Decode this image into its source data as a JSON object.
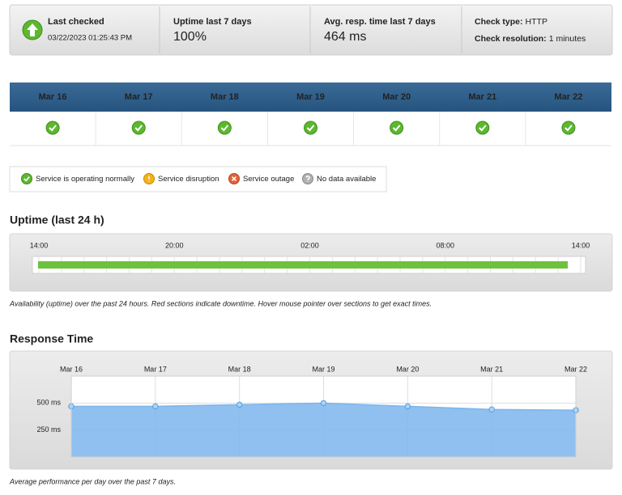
{
  "status": {
    "last_checked": {
      "label": "Last checked",
      "value": "03/22/2023 01:25:43 PM"
    },
    "uptime": {
      "label": "Uptime last 7 days",
      "value": "100%"
    },
    "avg_resp": {
      "label": "Avg. resp. time last 7 days",
      "value": "464 ms"
    },
    "check_type": {
      "label": "Check type:",
      "value": "HTTP"
    },
    "check_resolution": {
      "label": "Check resolution:",
      "value": "1 minutes"
    }
  },
  "days": [
    "Mar 16",
    "Mar 17",
    "Mar 18",
    "Mar 19",
    "Mar 20",
    "Mar 21",
    "Mar 22"
  ],
  "legend": [
    "Service is operating normally",
    "Service disruption",
    "Service outage",
    "No data available"
  ],
  "uptime_section": {
    "title": "Uptime (last 24 h)",
    "ticks": [
      "14:00",
      "20:00",
      "02:00",
      "08:00",
      "14:00"
    ],
    "caption": "Availability (uptime) over the past 24 hours. Red sections indicate downtime. Hover mouse pointer over sections to get exact times."
  },
  "response_section": {
    "title": "Response Time",
    "caption": "Average performance per day over the past 7 days."
  },
  "chart_data": {
    "type": "area",
    "categories": [
      "Mar 16",
      "Mar 17",
      "Mar 18",
      "Mar 19",
      "Mar 20",
      "Mar 21",
      "Mar 22"
    ],
    "series": [
      {
        "color": "#7cb5ec",
        "values": [
          470,
          470,
          485,
          500,
          470,
          441,
          434
        ]
      }
    ],
    "ylim": [
      0,
      750
    ],
    "yticks": [
      {
        "value": 250,
        "label": "250 ms"
      },
      {
        "value": 500,
        "label": "500 ms"
      }
    ],
    "grid": true
  }
}
